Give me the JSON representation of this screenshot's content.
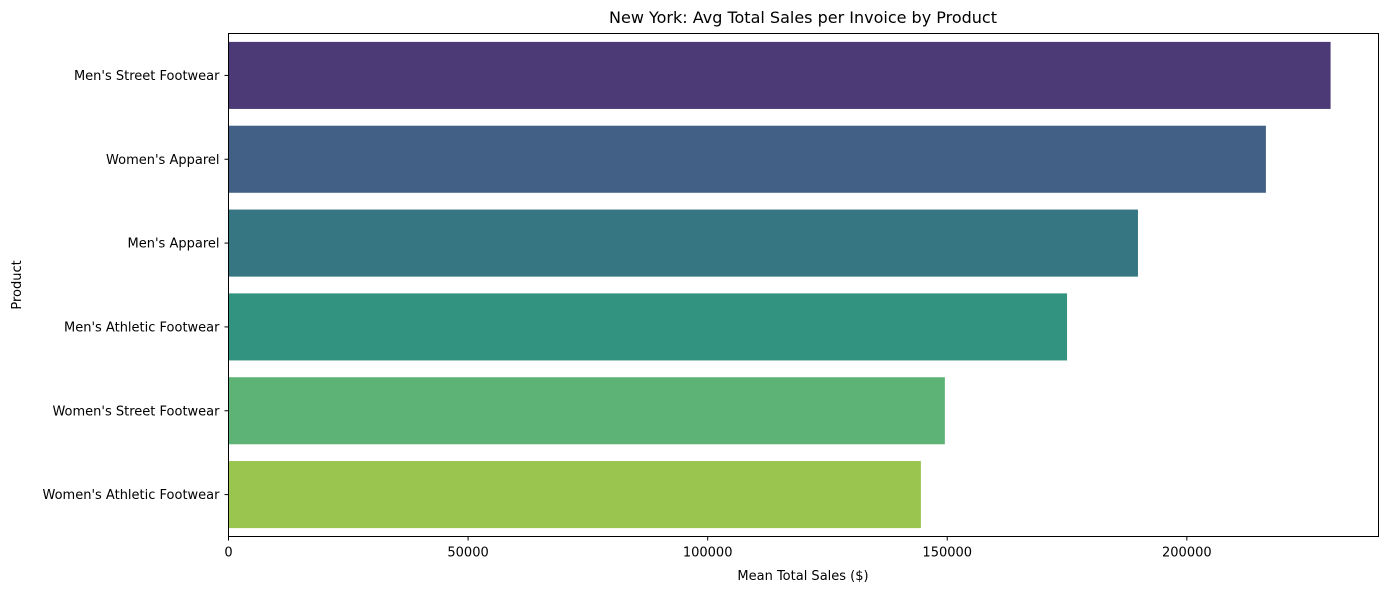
{
  "chart_data": {
    "type": "bar",
    "orientation": "horizontal",
    "title": "New York: Avg Total Sales per Invoice by Product",
    "xlabel": "Mean Total Sales ($)",
    "ylabel": "Product",
    "xlim": [
      0,
      240000
    ],
    "xticks": [
      0,
      50000,
      100000,
      150000,
      200000
    ],
    "xtick_labels": [
      "0",
      "50000",
      "100000",
      "150000",
      "200000"
    ],
    "grid": false,
    "categories": [
      "Men's Street Footwear",
      "Women's Apparel",
      "Men's Apparel",
      "Men's Athletic Footwear",
      "Women's Street Footwear",
      "Women's Athletic Footwear"
    ],
    "values": [
      230000,
      216500,
      189800,
      175000,
      149500,
      144500
    ],
    "colors": [
      "#4b3a75",
      "#425f85",
      "#367683",
      "#339381",
      "#5db275",
      "#9ac54e"
    ]
  }
}
